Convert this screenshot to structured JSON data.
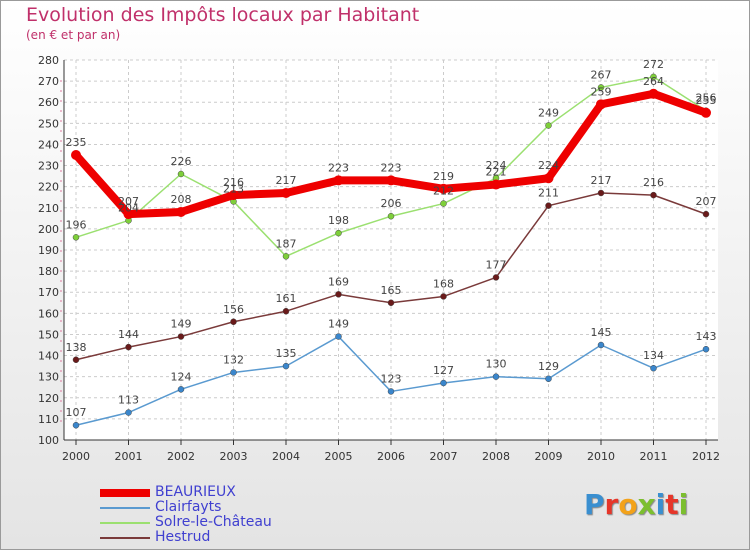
{
  "chart_data": {
    "type": "line",
    "title": "Evolution des Impôts locaux par Habitant",
    "subtitle": "(en € et par an)",
    "xlabel": "",
    "ylabel": "",
    "x": [
      "2000",
      "2001",
      "2002",
      "2003",
      "2004",
      "2005",
      "2006",
      "2007",
      "2008",
      "2009",
      "2010",
      "2011",
      "2012"
    ],
    "ylim": [
      100,
      280
    ],
    "yticks": [
      100,
      110,
      120,
      130,
      140,
      150,
      160,
      170,
      180,
      190,
      200,
      210,
      220,
      230,
      240,
      250,
      260,
      270,
      280
    ],
    "grid": true,
    "legend_position": "bottom-left",
    "series": [
      {
        "name": "BEAURIEUX",
        "color": "#ee0000",
        "marker_color": "#ee0000",
        "values": [
          235,
          207,
          208,
          216,
          217,
          223,
          223,
          219,
          221,
          224,
          259,
          264,
          255
        ],
        "labels": [
          "235",
          "207",
          "208",
          "216",
          "217",
          "223",
          "223",
          "219",
          "221",
          "224",
          "259",
          "264",
          "255"
        ]
      },
      {
        "name": "Clairfayts",
        "color": "#5a9ad0",
        "marker_color": "#3a86cc",
        "values": [
          107,
          113,
          124,
          132,
          135,
          149,
          123,
          127,
          130,
          129,
          145,
          134,
          143
        ],
        "labels": [
          "107",
          "113",
          "124",
          "132",
          "135",
          "149",
          "123",
          "127",
          "130",
          "129",
          "145",
          "134",
          "143"
        ]
      },
      {
        "name": "Solre-le-Château",
        "color": "#9be070",
        "marker_color": "#7ecf3a",
        "values": [
          196,
          204,
          226,
          213,
          187,
          198,
          206,
          212,
          224,
          249,
          267,
          272,
          256
        ],
        "labels": [
          "196",
          "204",
          "226",
          "213",
          "187",
          "198",
          "206",
          "212",
          "224",
          "249",
          "267",
          "272",
          "256"
        ]
      },
      {
        "name": "Hestrud",
        "color": "#7a3a3a",
        "marker_color": "#6a1a1a",
        "values": [
          138,
          144,
          149,
          156,
          161,
          169,
          165,
          168,
          177,
          211,
          217,
          216,
          207
        ],
        "labels": [
          "138",
          "144",
          "149",
          "156",
          "161",
          "169",
          "165",
          "168",
          "177",
          "211",
          "217",
          "216",
          "207"
        ]
      }
    ]
  },
  "logo": {
    "letters": [
      "P",
      "r",
      "o",
      "x",
      "i",
      "t",
      "i"
    ]
  },
  "colors": {
    "title": "#c0306a",
    "legend_text": "#4040d0",
    "grid": "#cccccc",
    "axis": "#333333"
  }
}
